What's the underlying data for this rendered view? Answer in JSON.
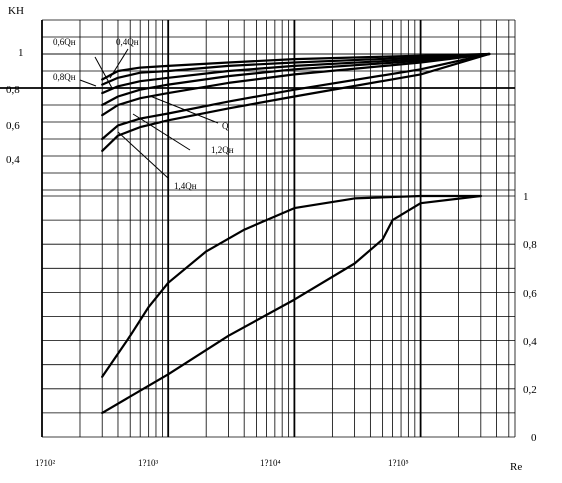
{
  "chart_data": [
    {
      "type": "line",
      "title": "",
      "ylabel": "KН",
      "xlabel": "Re",
      "x_scale": "log",
      "xlim": [
        100,
        600000
      ],
      "ylim": [
        0.2,
        1.2
      ],
      "ytick_labels": [
        {
          "value": 1.0,
          "text": "1"
        },
        {
          "value": 0.8,
          "text": "0,8"
        },
        {
          "value": 0.6,
          "text": "0,6"
        },
        {
          "value": 0.4,
          "text": "0,4"
        }
      ],
      "series": [
        {
          "name": "0,4Qн",
          "points": [
            [
              300,
              0.85
            ],
            [
              400,
              0.9
            ],
            [
              600,
              0.92
            ],
            [
              1000,
              0.93
            ],
            [
              3000,
              0.95
            ],
            [
              10000,
              0.97
            ],
            [
              100000,
              0.99
            ],
            [
              350000,
              1.0
            ]
          ]
        },
        {
          "name": "0,6Qн",
          "points": [
            [
              300,
              0.82
            ],
            [
              400,
              0.86
            ],
            [
              600,
              0.89
            ],
            [
              1000,
              0.9
            ],
            [
              3000,
              0.93
            ],
            [
              10000,
              0.95
            ],
            [
              100000,
              0.98
            ],
            [
              350000,
              1.0
            ]
          ]
        },
        {
          "name": "0,8Qн",
          "points": [
            [
              300,
              0.77
            ],
            [
              400,
              0.81
            ],
            [
              600,
              0.84
            ],
            [
              1000,
              0.86
            ],
            [
              3000,
              0.9
            ],
            [
              10000,
              0.93
            ],
            [
              100000,
              0.97
            ],
            [
              350000,
              1.0
            ]
          ]
        },
        {
          "name": "Q",
          "points": [
            [
              300,
              0.7
            ],
            [
              400,
              0.75
            ],
            [
              600,
              0.79
            ],
            [
              1000,
              0.82
            ],
            [
              3000,
              0.87
            ],
            [
              10000,
              0.91
            ],
            [
              100000,
              0.96
            ],
            [
              350000,
              1.0
            ]
          ]
        },
        {
          "name": "1,2Qн",
          "points": [
            [
              300,
              0.64
            ],
            [
              400,
              0.7
            ],
            [
              600,
              0.74
            ],
            [
              1000,
              0.77
            ],
            [
              3000,
              0.83
            ],
            [
              10000,
              0.88
            ],
            [
              100000,
              0.95
            ],
            [
              350000,
              1.0
            ]
          ]
        },
        {
          "name": "1,4Qн",
          "points": [
            [
              300,
              0.5
            ],
            [
              400,
              0.58
            ],
            [
              600,
              0.62
            ],
            [
              1000,
              0.65
            ],
            [
              3000,
              0.72
            ],
            [
              10000,
              0.79
            ],
            [
              100000,
              0.91
            ],
            [
              350000,
              1.0
            ]
          ]
        },
        {
          "name": "",
          "points": [
            [
              300,
              0.43
            ],
            [
              400,
              0.52
            ],
            [
              600,
              0.57
            ],
            [
              1000,
              0.61
            ],
            [
              3000,
              0.68
            ],
            [
              10000,
              0.75
            ],
            [
              100000,
              0.88
            ],
            [
              350000,
              1.0
            ]
          ]
        }
      ]
    },
    {
      "type": "line",
      "title": "",
      "xlabel": "Re",
      "x_scale": "log",
      "xlim": [
        100,
        600000
      ],
      "ylim": [
        0,
        1
      ],
      "x_tick_labels": [
        "1?10²",
        "1?10³",
        "1?10⁴",
        "1?10⁵"
      ],
      "y_tick_labels": [
        "1",
        "0,8",
        "0,6",
        "0,4",
        "0,2",
        "0"
      ],
      "series": [
        {
          "name": "",
          "points": [
            [
              300,
              0.25
            ],
            [
              500,
              0.42
            ],
            [
              700,
              0.54
            ],
            [
              1000,
              0.64
            ],
            [
              2000,
              0.77
            ],
            [
              4000,
              0.86
            ],
            [
              10000,
              0.95
            ],
            [
              30000,
              0.99
            ],
            [
              100000,
              1.0
            ],
            [
              300000,
              1.0
            ]
          ]
        },
        {
          "name": "",
          "points": [
            [
              300,
              0.1
            ],
            [
              1000,
              0.26
            ],
            [
              3000,
              0.42
            ],
            [
              10000,
              0.57
            ],
            [
              30000,
              0.72
            ],
            [
              50000,
              0.82
            ],
            [
              60000,
              0.9
            ],
            [
              100000,
              0.97
            ],
            [
              300000,
              1.0
            ]
          ]
        }
      ]
    }
  ]
}
